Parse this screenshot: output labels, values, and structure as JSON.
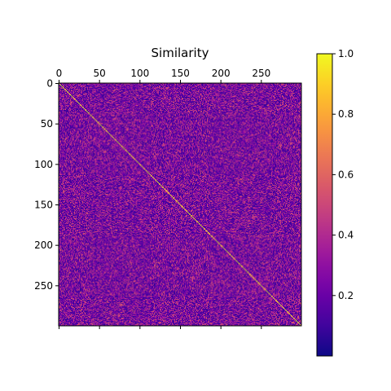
{
  "chart_data": {
    "type": "heatmap",
    "title": "Similarity",
    "matrix_size": 300,
    "xlim": [
      -0.5,
      299.5
    ],
    "ylim": [
      299.5,
      -0.5
    ],
    "x_tick_values": [
      0,
      50,
      100,
      150,
      200,
      250
    ],
    "y_tick_values": [
      0,
      50,
      100,
      150,
      200,
      250
    ],
    "x_ticks_position": "top",
    "y_axis_inverted": true,
    "grid": false,
    "diagonal_value": 1.0,
    "off_diagonal_value_range": [
      0.0,
      0.55
    ],
    "colormap": "plasma",
    "colorbar": {
      "position": "right",
      "range": [
        0.0,
        1.0
      ],
      "tick_values": [
        0.2,
        0.4,
        0.6,
        0.8,
        1.0
      ],
      "tick_labels": [
        "0.2",
        "0.4",
        "0.6",
        "0.8",
        "1.0"
      ]
    }
  }
}
